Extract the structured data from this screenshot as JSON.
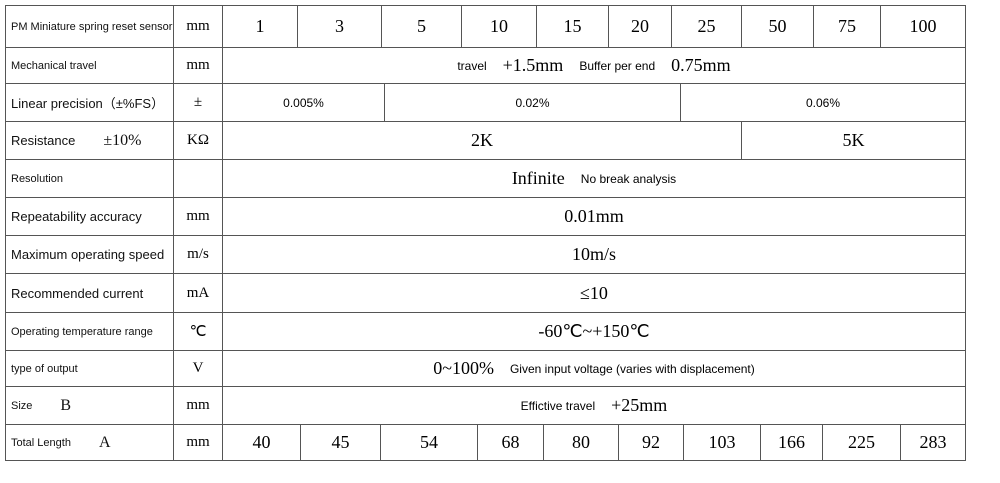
{
  "table": {
    "rows": [
      {
        "label": "PM Miniature spring reset sensor",
        "unit": "mm",
        "values": [
          "1",
          "3",
          "5",
          "10",
          "15",
          "20",
          "25",
          "50",
          "75",
          "100"
        ]
      },
      {
        "label": "Mechanical travel",
        "unit": "mm",
        "values": [
          "travel",
          "+1.5mm",
          "Buffer per end",
          "0.75mm"
        ]
      },
      {
        "label": "Linear precision（±%FS）",
        "unit": "±",
        "values": [
          "0.005%",
          "0.02%",
          "0.06%"
        ]
      },
      {
        "label": "Resistance",
        "label_note": "±10%",
        "unit": "KΩ",
        "values": [
          "2K",
          "5K"
        ]
      },
      {
        "label": "Resolution",
        "values": [
          "Infinite",
          "No break analysis"
        ]
      },
      {
        "label": "Repeatability accuracy",
        "unit": "mm",
        "values": [
          "0.01mm"
        ]
      },
      {
        "label": "Maximum operating speed",
        "unit": "m/s",
        "values": [
          "10m/s"
        ]
      },
      {
        "label": "Recommended current",
        "unit": "mA",
        "values": [
          "≤10"
        ]
      },
      {
        "label": "Operating temperature range",
        "unit": "℃",
        "values": [
          "-60℃~+150℃"
        ]
      },
      {
        "label": "type of output",
        "unit": "V",
        "values": [
          "0~100%",
          "Given input voltage (varies with displacement)"
        ]
      },
      {
        "label": "Size",
        "label_note": "B",
        "unit": "mm",
        "values": [
          "Effictive travel",
          "+25mm"
        ]
      },
      {
        "label": "Total Length",
        "label_note": "A",
        "unit": "mm",
        "values": [
          "40",
          "45",
          "54",
          "68",
          "80",
          "92",
          "103",
          "166",
          "225",
          "283"
        ]
      }
    ]
  }
}
